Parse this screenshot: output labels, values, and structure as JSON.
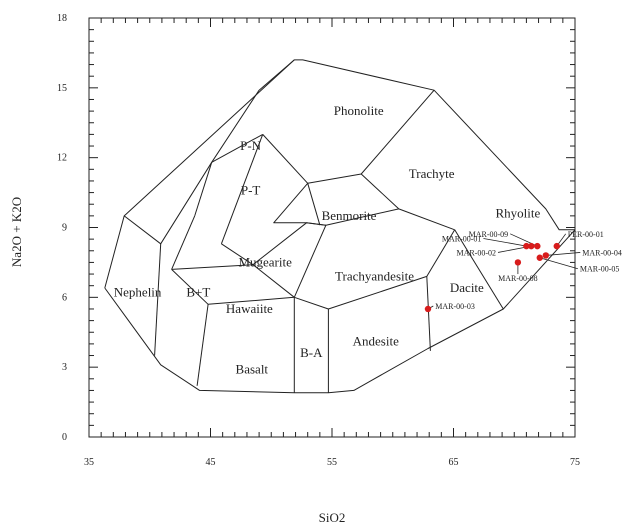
{
  "chart_data": {
    "type": "scatter",
    "title": "",
    "xlabel": "SiO2",
    "ylabel": "Na2O + K2O",
    "xlim": [
      35,
      75
    ],
    "ylim": [
      0,
      18
    ],
    "xticks": [
      35,
      45,
      55,
      65,
      75
    ],
    "yticks": [
      0,
      3,
      6,
      9,
      12,
      15,
      18
    ],
    "xtick_labels": [
      "35",
      "45",
      "55",
      "65",
      "75"
    ],
    "ytick_labels": [
      "0",
      "3",
      "6",
      "9",
      "12",
      "15",
      "18"
    ],
    "grid": false,
    "marker_color": "#d81c1c",
    "field_boundaries": [
      [
        [
          36.3,
          6.4
        ],
        [
          40.9,
          3.1
        ],
        [
          44.1,
          2.0
        ],
        [
          51.9,
          1.9
        ],
        [
          54.7,
          1.9
        ],
        [
          56.8,
          2.0
        ],
        [
          62.9,
          3.8
        ],
        [
          69.1,
          5.5
        ],
        [
          75.0,
          8.9
        ],
        [
          73.7,
          8.9
        ],
        [
          72.6,
          9.8
        ],
        [
          63.4,
          14.9
        ],
        [
          52.6,
          16.2
        ],
        [
          51.9,
          16.2
        ],
        [
          37.9,
          9.5
        ],
        [
          36.3,
          6.4
        ]
      ],
      [
        [
          51.9,
          16.2
        ],
        [
          49.0,
          14.9
        ]
      ],
      [
        [
          49.0,
          14.9
        ],
        [
          45.1,
          11.8
        ],
        [
          40.9,
          8.3
        ],
        [
          37.9,
          9.5
        ]
      ],
      [
        [
          45.1,
          11.8
        ],
        [
          43.7,
          9.5
        ]
      ],
      [
        [
          49.3,
          13.0
        ],
        [
          45.9,
          8.3
        ]
      ],
      [
        [
          45.1,
          11.8
        ],
        [
          49.3,
          13.0
        ]
      ],
      [
        [
          40.4,
          3.5
        ],
        [
          40.9,
          8.3
        ]
      ],
      [
        [
          43.7,
          9.5
        ],
        [
          41.8,
          7.2
        ]
      ],
      [
        [
          43.9,
          2.2
        ],
        [
          44.8,
          5.7
        ]
      ],
      [
        [
          41.8,
          7.2
        ],
        [
          44.8,
          5.7
        ],
        [
          51.9,
          6.0
        ]
      ],
      [
        [
          41.8,
          7.2
        ],
        [
          48.5,
          7.4
        ]
      ],
      [
        [
          45.9,
          8.3
        ],
        [
          48.5,
          7.4
        ]
      ],
      [
        [
          48.5,
          7.4
        ],
        [
          51.9,
          6.0
        ]
      ],
      [
        [
          51.9,
          1.9
        ],
        [
          51.9,
          6.0
        ]
      ],
      [
        [
          54.7,
          1.9
        ],
        [
          54.7,
          5.5
        ]
      ],
      [
        [
          51.9,
          6.0
        ],
        [
          54.7,
          5.5
        ],
        [
          62.8,
          6.9
        ]
      ],
      [
        [
          48.5,
          7.4
        ],
        [
          52.9,
          9.2
        ],
        [
          54.5,
          9.1
        ]
      ],
      [
        [
          54.5,
          9.1
        ],
        [
          52.9,
          9.2
        ],
        [
          50.2,
          9.2
        ],
        [
          53.0,
          10.9
        ],
        [
          57.4,
          11.3
        ],
        [
          63.4,
          14.9
        ]
      ],
      [
        [
          49.3,
          13.0
        ],
        [
          53.0,
          10.9
        ]
      ],
      [
        [
          53.0,
          10.9
        ],
        [
          54.0,
          9.1
        ]
      ],
      [
        [
          54.5,
          9.1
        ],
        [
          51.9,
          6.0
        ]
      ],
      [
        [
          57.4,
          11.3
        ],
        [
          60.5,
          9.8
        ],
        [
          65.1,
          8.9
        ]
      ],
      [
        [
          60.5,
          9.8
        ],
        [
          54.5,
          9.1
        ]
      ],
      [
        [
          65.1,
          8.9
        ],
        [
          69.1,
          5.5
        ]
      ],
      [
        [
          65.1,
          8.9
        ],
        [
          62.8,
          6.9
        ]
      ],
      [
        [
          62.8,
          6.9
        ],
        [
          63.1,
          3.7
        ]
      ]
    ],
    "fields": [
      {
        "name": "Phonolite",
        "x": 57.2,
        "y": 14.0
      },
      {
        "name": "Trachyte",
        "x": 63.2,
        "y": 11.3
      },
      {
        "name": "P-N",
        "x": 48.3,
        "y": 12.5
      },
      {
        "name": "P-T",
        "x": 48.3,
        "y": 10.6
      },
      {
        "name": "Benmorite",
        "x": 56.4,
        "y": 9.5
      },
      {
        "name": "Rhyolite",
        "x": 70.3,
        "y": 9.6
      },
      {
        "name": "Mugearite",
        "x": 49.5,
        "y": 7.5
      },
      {
        "name": "Trachyandesite",
        "x": 58.5,
        "y": 6.9
      },
      {
        "name": "B+T",
        "x": 44.0,
        "y": 6.2
      },
      {
        "name": "Nephelin",
        "x": 39.0,
        "y": 6.2
      },
      {
        "name": "Hawaiite",
        "x": 48.2,
        "y": 5.5
      },
      {
        "name": "Dacite",
        "x": 66.1,
        "y": 6.4
      },
      {
        "name": "Andesite",
        "x": 58.6,
        "y": 4.1
      },
      {
        "name": "B-A",
        "x": 53.3,
        "y": 3.6
      },
      {
        "name": "Basalt",
        "x": 48.4,
        "y": 2.9
      }
    ],
    "samples": [
      {
        "name": "PER-00-01",
        "x": 73.5,
        "y": 8.2,
        "lx": 74.4,
        "ly": 8.6
      },
      {
        "name": "MAR-00-09",
        "x": 71.9,
        "y": 8.2,
        "lx": 69.5,
        "ly": 8.6
      },
      {
        "name": "MAR-00-02",
        "x": 71.4,
        "y": 8.2,
        "lx": 68.5,
        "ly": 7.8
      },
      {
        "name": "MAR-00-01",
        "x": 71.0,
        "y": 8.2,
        "lx": 67.3,
        "ly": 8.4
      },
      {
        "name": "MAR-00-04",
        "x": 72.6,
        "y": 7.8,
        "lx": 75.6,
        "ly": 7.8
      },
      {
        "name": "MAR-00-05",
        "x": 72.1,
        "y": 7.7,
        "lx": 75.4,
        "ly": 7.1
      },
      {
        "name": "MAR-00-08",
        "x": 70.3,
        "y": 7.5,
        "lx": 70.3,
        "ly": 6.7
      },
      {
        "name": "MAR-00-03",
        "x": 62.9,
        "y": 5.5,
        "lx": 63.5,
        "ly": 5.5
      }
    ]
  }
}
